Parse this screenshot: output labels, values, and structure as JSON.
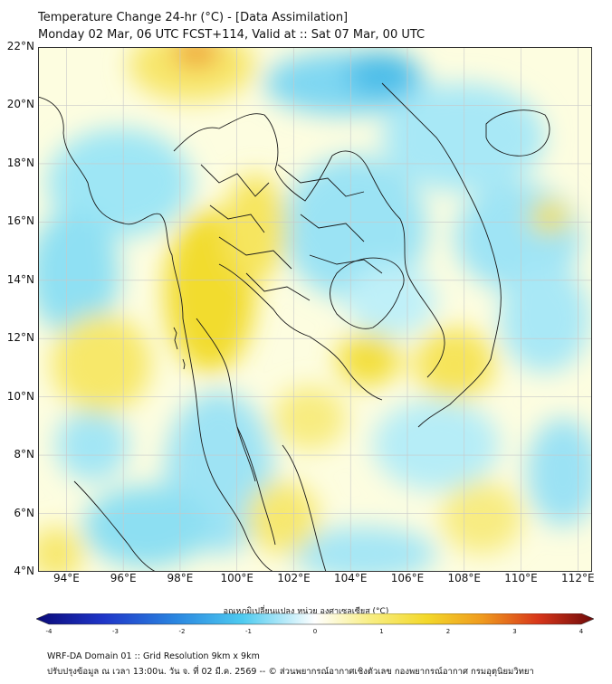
{
  "header": {
    "title_line1": "Temperature Change 24-hr (°C) - [Data Assimilation]",
    "title_line2": "Monday 02 Mar, 06 UTC FCST+114, Valid at :: Sat 07 Mar, 00 UTC"
  },
  "map": {
    "lat_labels": [
      "22°N",
      "20°N",
      "18°N",
      "16°N",
      "14°N",
      "12°N",
      "10°N",
      "8°N",
      "6°N",
      "4°N"
    ],
    "lon_labels": [
      "94°E",
      "96°E",
      "98°E",
      "100°E",
      "102°E",
      "104°E",
      "106°E",
      "108°E",
      "110°E",
      "112°E"
    ],
    "lat_range": [
      4,
      22
    ],
    "lon_range": [
      93,
      112.5
    ],
    "palette": {
      "land_line": "#1a1a1a",
      "warm": "#f5e13c",
      "cool": "#6fd6ef",
      "cold": "#2aa9e0",
      "hot": "#e8a41a"
    }
  },
  "colorbar": {
    "title": "อุณหภูมิเปลี่ยนแปลง หน่วย องศาเซลเซียส (°C)",
    "ticks": [
      "-4",
      "-3",
      "-2",
      "-1",
      "0",
      "1",
      "2",
      "3",
      "4"
    ],
    "min": -4,
    "max": 4
  },
  "footer": {
    "line1": "WRF-DA Domain 01 :: Grid Resolution 9km x 9km",
    "line2": "ปรับปรุงข้อมูล ณ เวลา 13:00น. วัน จ. ที่ 02 มี.ค. 2569 -- © ส่วนพยากรณ์อากาศเชิงตัวเลข กองพยากรณ์อากาศ กรมอุตุนิยมวิทยา"
  }
}
